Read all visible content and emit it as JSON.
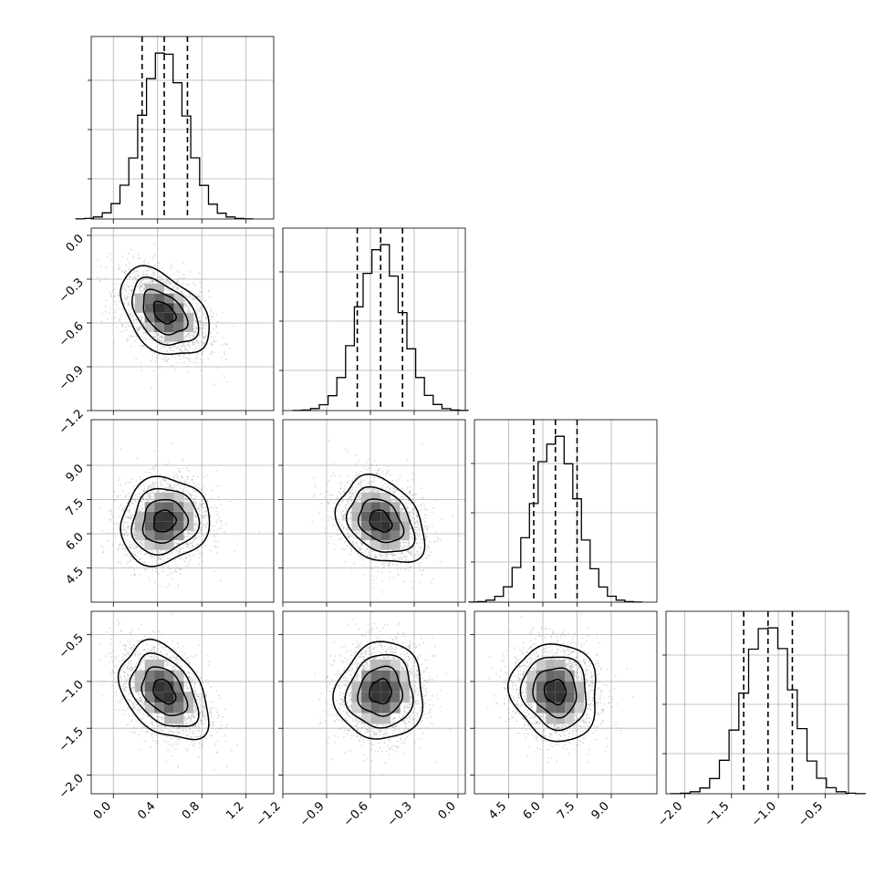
{
  "chart_data": {
    "type": "corner",
    "grid": true,
    "parameters": [
      {
        "index": 0,
        "range": [
          -0.2,
          1.45
        ],
        "ticks": [
          0.0,
          0.4,
          0.8,
          1.2
        ],
        "tick_labels": [
          "0.0",
          "0.4",
          "0.8",
          "1.2"
        ],
        "mean": 0.46,
        "sd": 0.2,
        "quantiles": [
          0.26,
          0.46,
          0.67
        ]
      },
      {
        "index": 1,
        "range": [
          -1.2,
          0.05
        ],
        "ticks": [
          -1.2,
          -0.9,
          -0.6,
          -0.3,
          0.0
        ],
        "tick_labels": [
          "−1.2",
          "−0.9",
          "−0.6",
          "−0.3",
          "0.0"
        ],
        "mean": -0.53,
        "sd": 0.15,
        "quantiles": [
          -0.69,
          -0.53,
          -0.38
        ]
      },
      {
        "index": 2,
        "range": [
          3.0,
          11.0
        ],
        "ticks": [
          4.5,
          6.0,
          7.5,
          9.0
        ],
        "tick_labels": [
          "4.5",
          "6.0",
          "7.5",
          "9.0"
        ],
        "mean": 6.55,
        "sd": 0.95,
        "quantiles": [
          5.6,
          6.55,
          7.5
        ]
      },
      {
        "index": 3,
        "range": [
          -2.2,
          -0.25
        ],
        "ticks": [
          -2.0,
          -1.5,
          -1.0,
          -0.5
        ],
        "tick_labels": [
          "−2.0",
          "−1.5",
          "−1.0",
          "−0.5"
        ],
        "mean": -1.11,
        "sd": 0.26,
        "quantiles": [
          -1.37,
          -1.11,
          -0.85
        ]
      }
    ],
    "correlations": {
      "1,0": -0.42,
      "2,0": 0.1,
      "2,1": -0.28,
      "3,0": -0.38,
      "3,1": 0.05,
      "3,2": -0.08
    },
    "histogram_bins": 20,
    "hist_ymax_fraction": 1.1,
    "scatter_samples_per_panel": 2000,
    "colors": {
      "line": "#000000",
      "grid": "#b0b0b0",
      "points": "#9a9a9a",
      "density_max": "#1a1a1a"
    }
  }
}
